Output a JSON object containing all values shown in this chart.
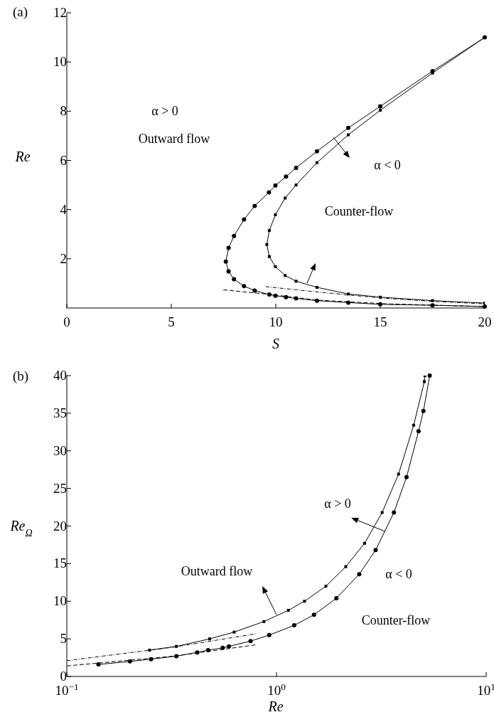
{
  "chart_data": [
    {
      "type": "line",
      "title": "(a)",
      "xlabel": "S",
      "ylabel": "Re",
      "xlim": [
        0,
        20
      ],
      "xticks": [
        0,
        5,
        10,
        15,
        20
      ],
      "ylim": [
        0,
        12
      ],
      "yticks": [
        2,
        4,
        6,
        8,
        10,
        12
      ],
      "annotations": [
        "α > 0",
        "Outward flow",
        "α < 0",
        "Counter-flow"
      ],
      "series": [
        {
          "color": "#000000",
          "marker": "circle",
          "line_style": "solid",
          "x": [
            20,
            17.5,
            15,
            13.47,
            11.97,
            10.97,
            10.49,
            9.98,
            9.67,
            8.99,
            8.48,
            8.0,
            7.74,
            7.61,
            7.74,
            8.0,
            8.48,
            8.99,
            9.69,
            9.98,
            10.49,
            10.97,
            11.97,
            13.47,
            15,
            17.5,
            20
          ],
          "values": [
            11.0,
            9.63,
            8.2,
            7.32,
            6.37,
            5.7,
            5.34,
            4.98,
            4.7,
            4.15,
            3.6,
            2.93,
            2.44,
            1.89,
            1.49,
            1.17,
            0.89,
            0.71,
            0.55,
            0.5,
            0.44,
            0.39,
            0.3,
            0.22,
            0.15,
            0.11,
            0.06
          ]
        },
        {
          "color": "#000000",
          "marker": "square",
          "line_style": "solid",
          "x": [
            20,
            17.5,
            15,
            13.47,
            11.97,
            10.97,
            10.45,
            9.98,
            9.69,
            9.57,
            9.69,
            9.98,
            10.45,
            10.97,
            11.97,
            13.47,
            15,
            17.5,
            20
          ],
          "values": [
            11.0,
            9.55,
            8.04,
            7.04,
            5.91,
            5.0,
            4.47,
            3.79,
            3.15,
            2.58,
            2.09,
            1.68,
            1.32,
            1.09,
            0.84,
            0.57,
            0.44,
            0.3,
            0.2
          ]
        },
        {
          "color": "#000000",
          "marker": "none",
          "line_style": "dashdot",
          "x": [
            9.52,
            10.97,
            13.47,
            15,
            17.5,
            20
          ],
          "values": [
            0.87,
            0.74,
            0.53,
            0.41,
            0.27,
            0.17
          ]
        },
        {
          "color": "#000000",
          "marker": "none",
          "line_style": "dashed",
          "x": [
            7.49,
            9.73,
            12,
            15.3,
            20
          ],
          "values": [
            0.74,
            0.55,
            0.32,
            0.17,
            0.06
          ]
        }
      ]
    },
    {
      "type": "line",
      "title": "(b)",
      "xlabel": "Re",
      "ylabel": "Re$_{Ω}$",
      "log": "x",
      "xlim": [
        0.1,
        10
      ],
      "xticks": [
        {
          "value": 0.1,
          "label": "10$^{−1}$"
        },
        {
          "value": 1,
          "label": "10$^{0}$"
        },
        {
          "value": 10,
          "label": "10$^{1}$"
        }
      ],
      "ylim": [
        0,
        40
      ],
      "yticks": [
        0,
        5,
        10,
        15,
        20,
        25,
        30,
        35,
        40
      ],
      "annotations": [
        {
          "text": "α > 0",
          "x": 3.28,
          "y": 19.3
        },
        "Outward flow",
        "α < 0",
        "Counter-flow"
      ],
      "series": [
        {
          "color": "#000000",
          "marker": "square",
          "line_style": "solid",
          "x": [
            0.248,
            0.333,
            0.48,
            0.628,
            0.871,
            1.14,
            1.36,
            1.72,
            2.14,
            2.63,
            3.19,
            3.82,
            4.51,
            5.07,
            5.1
          ],
          "values": [
            3.5,
            4.0,
            5.0,
            5.9,
            7.3,
            8.8,
            10.0,
            12.0,
            14.6,
            17.7,
            21.8,
            26.9,
            33.4,
            39.2,
            40
          ]
        },
        {
          "color": "#000000",
          "marker": "circle",
          "line_style": "solid",
          "x": [
            0.1415,
            0.2,
            0.252,
            0.333,
            0.419,
            0.472,
            0.554,
            0.593,
            0.752,
            0.923,
            1.215,
            1.51,
            1.93,
            2.48,
            2.97,
            3.63,
            4.17,
            4.76,
            5.02,
            5.38
          ],
          "values": [
            1.6,
            2.0,
            2.3,
            2.7,
            3.2,
            3.5,
            3.8,
            4.0,
            4.7,
            5.5,
            6.8,
            8.2,
            10.4,
            13.6,
            16.8,
            21.8,
            26.5,
            32.6,
            35.3,
            40
          ]
        },
        {
          "color": "#000000",
          "marker": "none",
          "line_style": "dashdot",
          "x": [
            0.1,
            0.323,
            0.806
          ],
          "values": [
            2.1,
            3.9,
            5.7
          ]
        },
        {
          "color": "#000000",
          "marker": "none",
          "line_style": "dashed",
          "x": [
            0.1,
            0.323,
            0.794
          ],
          "values": [
            1.4,
            2.7,
            4.2
          ]
        }
      ]
    }
  ]
}
